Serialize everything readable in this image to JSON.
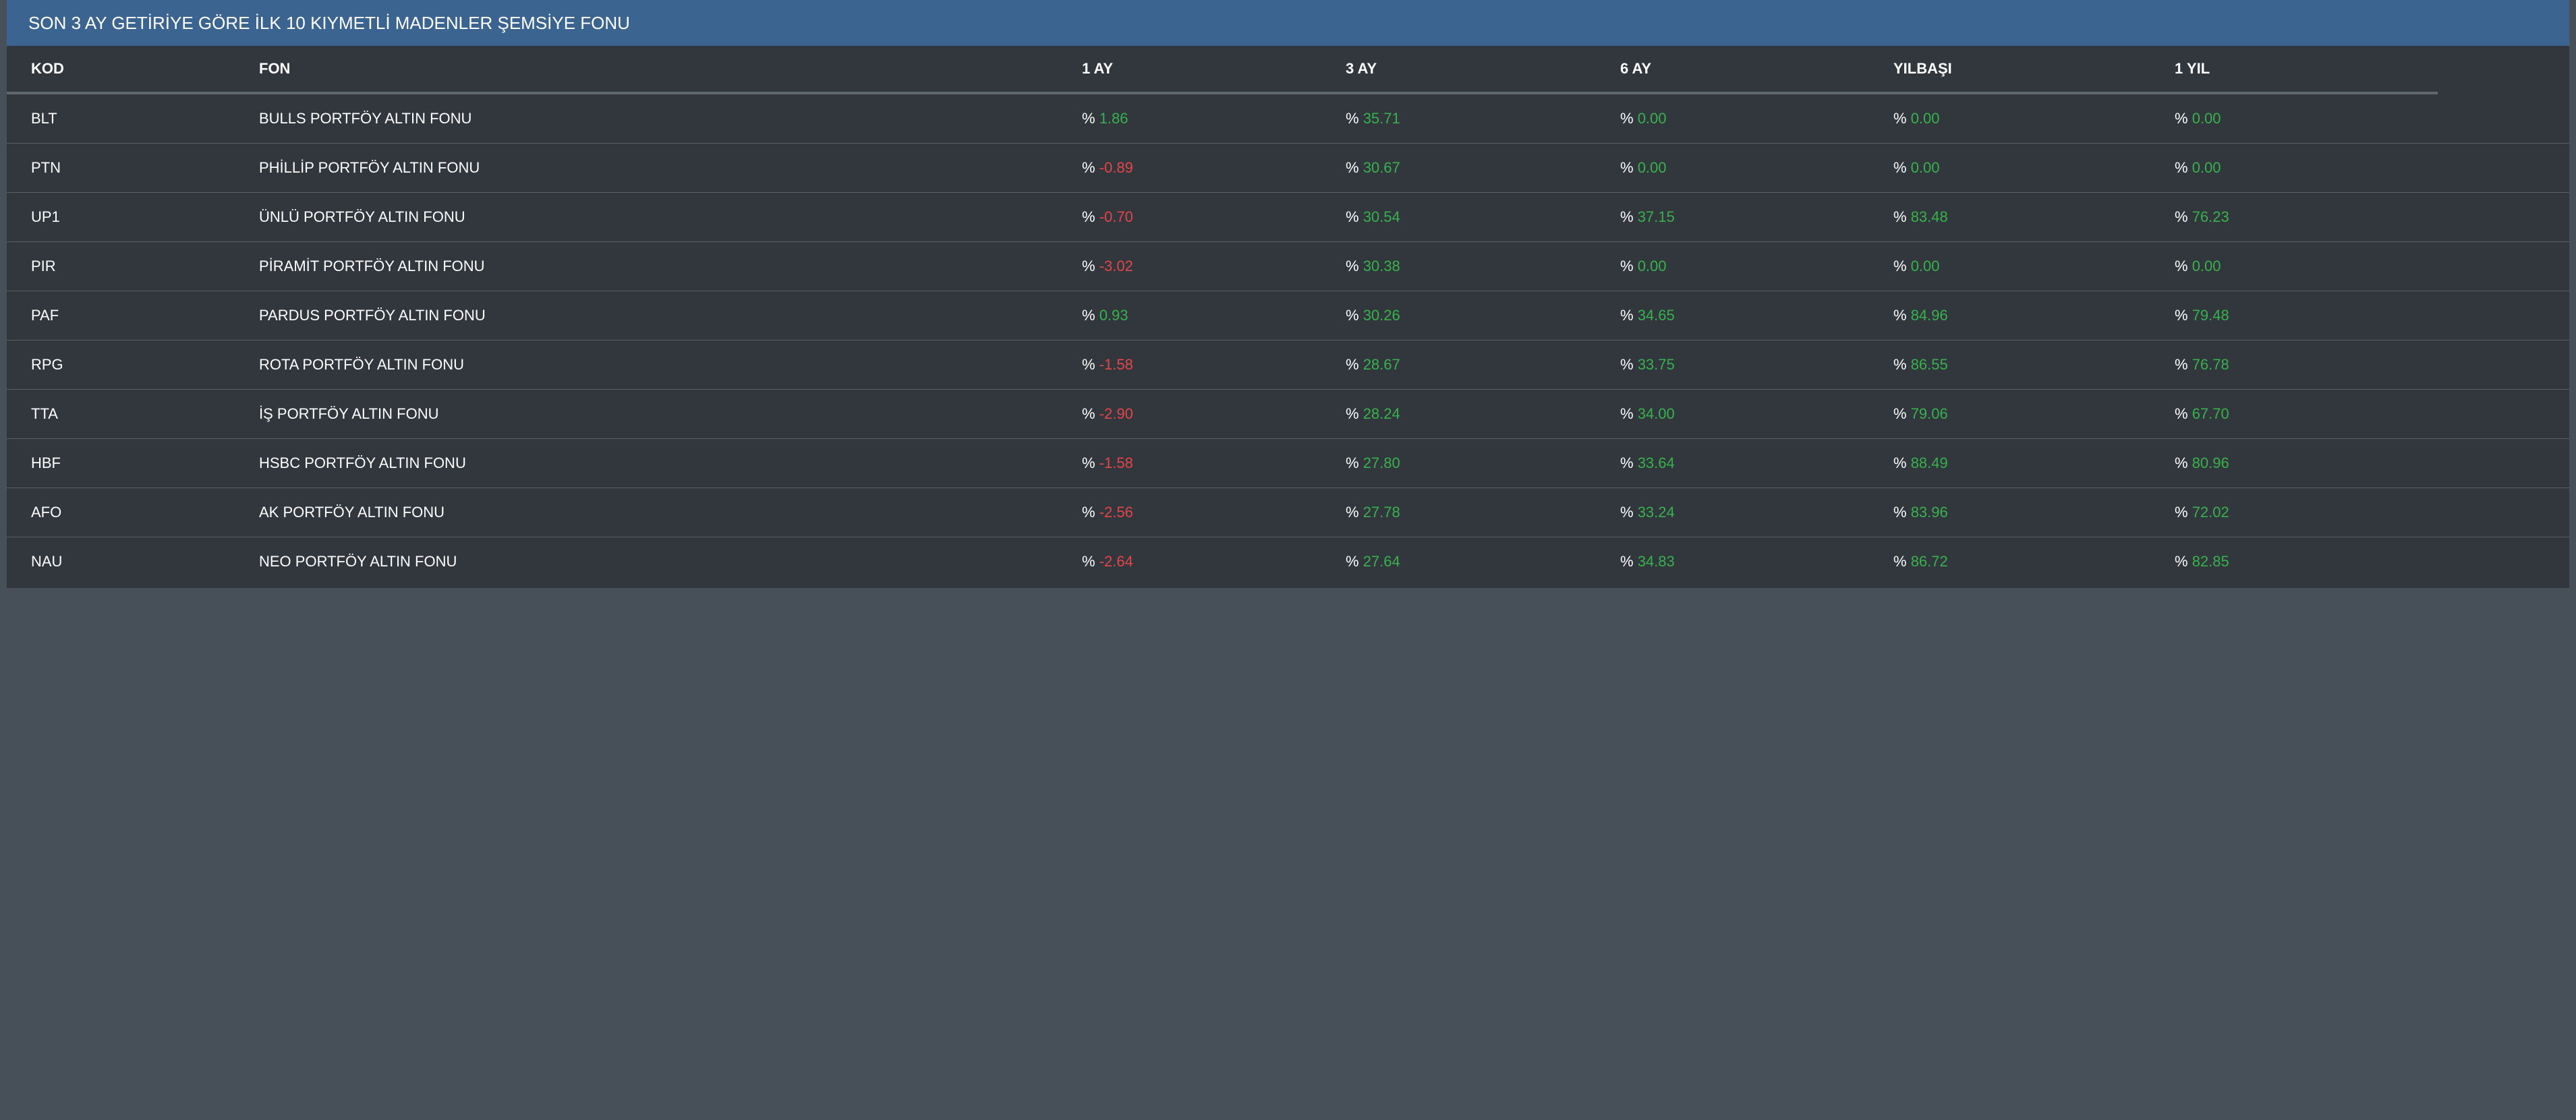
{
  "header": {
    "title": "SON 3 AY GETİRİYE GÖRE İLK 10 KIYMETLİ MADENLER ŞEMSİYE FONU"
  },
  "columns": {
    "kod": "KOD",
    "fon": "FON",
    "ay1": "1 AY",
    "ay3": "3 AY",
    "ay6": "6 AY",
    "yilbasi": "YILBAŞI",
    "yil1": "1 YIL"
  },
  "percent_sign": "%",
  "colors": {
    "header_bg": "#3c6490",
    "panel_bg": "#32363d",
    "page_bg": "#475059",
    "positive": "#37b24d",
    "negative": "#e6454a"
  },
  "rows": [
    {
      "kod": "BLT",
      "fon": "BULLS PORTFÖY ALTIN FONU",
      "ay1": "1.86",
      "ay3": "35.71",
      "ay6": "0.00",
      "yilbasi": "0.00",
      "yil1": "0.00"
    },
    {
      "kod": "PTN",
      "fon": "PHİLLİP PORTFÖY ALTIN FONU",
      "ay1": "-0.89",
      "ay3": "30.67",
      "ay6": "0.00",
      "yilbasi": "0.00",
      "yil1": "0.00"
    },
    {
      "kod": "UP1",
      "fon": "ÜNLÜ PORTFÖY ALTIN FONU",
      "ay1": "-0.70",
      "ay3": "30.54",
      "ay6": "37.15",
      "yilbasi": "83.48",
      "yil1": "76.23"
    },
    {
      "kod": "PIR",
      "fon": "PİRAMİT PORTFÖY ALTIN FONU",
      "ay1": "-3.02",
      "ay3": "30.38",
      "ay6": "0.00",
      "yilbasi": "0.00",
      "yil1": "0.00"
    },
    {
      "kod": "PAF",
      "fon": "PARDUS PORTFÖY ALTIN FONU",
      "ay1": "0.93",
      "ay3": "30.26",
      "ay6": "34.65",
      "yilbasi": "84.96",
      "yil1": "79.48"
    },
    {
      "kod": "RPG",
      "fon": "ROTA PORTFÖY ALTIN FONU",
      "ay1": "-1.58",
      "ay3": "28.67",
      "ay6": "33.75",
      "yilbasi": "86.55",
      "yil1": "76.78"
    },
    {
      "kod": "TTA",
      "fon": "İŞ PORTFÖY ALTIN FONU",
      "ay1": "-2.90",
      "ay3": "28.24",
      "ay6": "34.00",
      "yilbasi": "79.06",
      "yil1": "67.70"
    },
    {
      "kod": "HBF",
      "fon": "HSBC PORTFÖY ALTIN FONU",
      "ay1": "-1.58",
      "ay3": "27.80",
      "ay6": "33.64",
      "yilbasi": "88.49",
      "yil1": "80.96"
    },
    {
      "kod": "AFO",
      "fon": "AK PORTFÖY ALTIN FONU",
      "ay1": "-2.56",
      "ay3": "27.78",
      "ay6": "33.24",
      "yilbasi": "83.96",
      "yil1": "72.02"
    },
    {
      "kod": "NAU",
      "fon": "NEO PORTFÖY ALTIN FONU",
      "ay1": "-2.64",
      "ay3": "27.64",
      "ay6": "34.83",
      "yilbasi": "86.72",
      "yil1": "82.85"
    }
  ]
}
